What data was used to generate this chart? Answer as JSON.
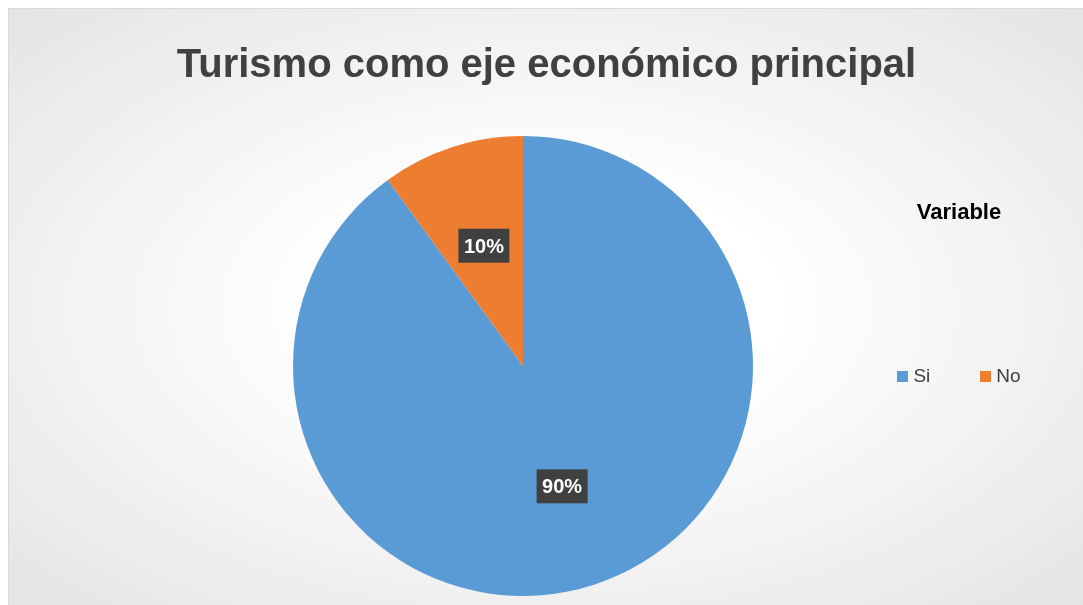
{
  "chart_data": {
    "type": "pie",
    "title": "Turismo como eje económico principal",
    "legend_title": "Variable",
    "categories": [
      "Si",
      "No"
    ],
    "values": [
      90,
      10
    ],
    "colors": [
      "#5b9bd5",
      "#ed7d31"
    ],
    "value_labels": [
      "90%",
      "10%"
    ],
    "legend": "right"
  }
}
